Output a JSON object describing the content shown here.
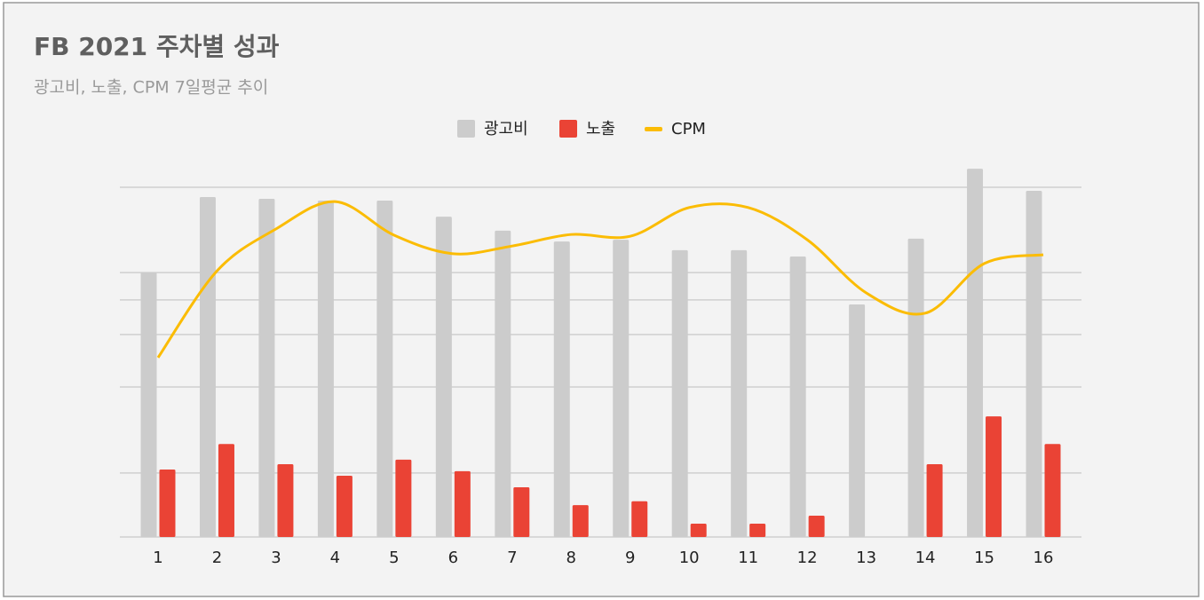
{
  "chart_data": {
    "type": "bar_line",
    "title": "FB 2021 주차별 성과",
    "subtitle": "광고비, 노출, CPM 7일평균 추이",
    "categories": [
      "1",
      "2",
      "3",
      "4",
      "5",
      "6",
      "7",
      "8",
      "9",
      "10",
      "11",
      "12",
      "13",
      "14",
      "15",
      "16"
    ],
    "series": [
      {
        "name": "광고비",
        "type": "bar",
        "color": "#cccccc",
        "values": [
          75.6,
          97.2,
          96.7,
          96.2,
          96.2,
          91.6,
          87.6,
          84.5,
          85.0,
          82.0,
          82.0,
          80.2,
          66.5,
          85.3,
          105.3,
          99.0
        ]
      },
      {
        "name": "노출",
        "type": "bar",
        "color": "#ea4335",
        "values": [
          19.3,
          26.6,
          20.8,
          17.5,
          22.1,
          18.8,
          14.2,
          9.1,
          10.2,
          3.8,
          3.8,
          6.1,
          null,
          20.8,
          34.5,
          26.6
        ]
      },
      {
        "name": "CPM",
        "type": "line",
        "color": "#fbbc04",
        "values": [
          51.3,
          76.1,
          88.1,
          95.9,
          86.3,
          81.0,
          83.2,
          86.5,
          86.0,
          94.2,
          94.2,
          85.0,
          69.8,
          64.0,
          78.2,
          80.7
        ]
      }
    ],
    "ylim": [
      0,
      110
    ],
    "gridlines": [
      18.3,
      42.9,
      57.9,
      67.8,
      75.6,
      100
    ],
    "legend": "top"
  }
}
